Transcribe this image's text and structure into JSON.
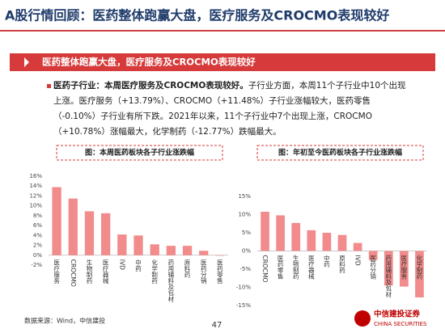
{
  "header": {
    "title": "A股行情回顾：医药整体跑赢大盘，医疗服务及CROCMO表现较好"
  },
  "banner": "医药整体跑赢大盘，医疗服务及CROCMO表现较好",
  "paragraph": {
    "lead": "医药子行业：本周医疗服务及CROCMO表现较好。",
    "body": "子行业方面，本周11个子行业中10个出现上涨。医疗服务（+13.79%）、CROCMO（+11.48%）子行业涨幅较大，医药零售（-0.10%）子行业有所下跌。2021年以来，11个子行业中7个出现上涨，CROCMO（+10.78%）涨幅最大，化学制药（-12.77%）跌幅最大。"
  },
  "chart_data": [
    {
      "type": "bar",
      "title": "图：本周医药板块各子行业涨跌幅",
      "color": "#f28b8b",
      "categories": [
        "医疗服务",
        "CROCMO",
        "生物制药",
        "医疗器械",
        "IVD",
        "中药",
        "化学制药",
        "药用辅料及包材",
        "原料药",
        "医药分销",
        "医药零售"
      ],
      "values": [
        13.79,
        11.48,
        8.9,
        8.5,
        4.2,
        4.0,
        2.2,
        1.9,
        1.9,
        0.9,
        -0.1
      ],
      "ylim": [
        -2,
        16
      ],
      "yticks": [
        {
          "value": -2,
          "label": "-2%"
        },
        {
          "value": 0,
          "label": "0%"
        },
        {
          "value": 2,
          "label": "2%"
        },
        {
          "value": 4,
          "label": "4%"
        },
        {
          "value": 6,
          "label": "6%"
        },
        {
          "value": 8,
          "label": "8%"
        },
        {
          "value": 10,
          "label": "10%"
        },
        {
          "value": 12,
          "label": "12%"
        },
        {
          "value": 14,
          "label": "14%"
        },
        {
          "value": 16,
          "label": "16%"
        }
      ]
    },
    {
      "type": "bar",
      "title": "图：年初至今医药板块各子行业涨跌幅",
      "color": "#f28b8b",
      "categories": [
        "CROCMO",
        "医药零售",
        "生物制药",
        "医疗器械",
        "中药",
        "原料药",
        "IVD",
        "医药分销",
        "药用辅料及包材",
        "医疗服务",
        "化学制药"
      ],
      "values": [
        10.78,
        9.8,
        7.7,
        5.7,
        5.0,
        4.4,
        2.2,
        -2.5,
        -9.5,
        -9.8,
        -12.77
      ],
      "ylim": [
        -15,
        15
      ],
      "yticks": [
        {
          "value": -15,
          "label": "-15%"
        },
        {
          "value": -10,
          "label": "-10%"
        },
        {
          "value": -5,
          "label": "-5%"
        },
        {
          "value": 0,
          "label": "0%"
        },
        {
          "value": 5,
          "label": "5%"
        },
        {
          "value": 10,
          "label": "10%"
        },
        {
          "value": 15,
          "label": "15%"
        }
      ]
    }
  ],
  "footer": {
    "source": "数据来源：Wind，中信建投",
    "page": "47",
    "logo_cn": "中信建投证券",
    "logo_en": "CHINA SECURITIES"
  }
}
